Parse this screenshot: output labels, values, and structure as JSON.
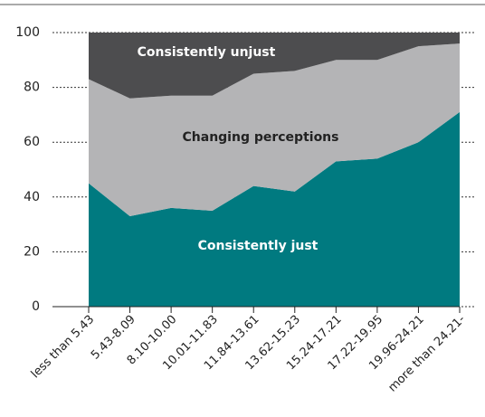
{
  "chart_data": {
    "type": "stacked_area",
    "categories": [
      "less than 5.43",
      "5.43-8.09",
      "8.10-10.00",
      "10.01-11.83",
      "11.84-13.61",
      "13.62-15.23",
      "15.24-17.21",
      "17.22-19.95",
      "19.96-24.21",
      "more than 24.21-"
    ],
    "series": [
      {
        "name": "Consistently just",
        "color": "#007a80",
        "values": [
          45,
          33,
          36,
          35,
          44,
          42,
          53,
          54,
          60,
          71
        ]
      },
      {
        "name": "Changing perceptions",
        "color": "#b4b4b6",
        "values": [
          38,
          43,
          41,
          42,
          41,
          44,
          37,
          36,
          35,
          25
        ]
      },
      {
        "name": "Consistently unjust",
        "color": "#4d4d4f",
        "values": [
          17,
          24,
          23,
          23,
          15,
          14,
          10,
          10,
          5,
          4
        ]
      }
    ],
    "ylim": [
      0,
      100
    ],
    "yticks": [
      0,
      20,
      40,
      60,
      80,
      100
    ],
    "grid": true
  }
}
